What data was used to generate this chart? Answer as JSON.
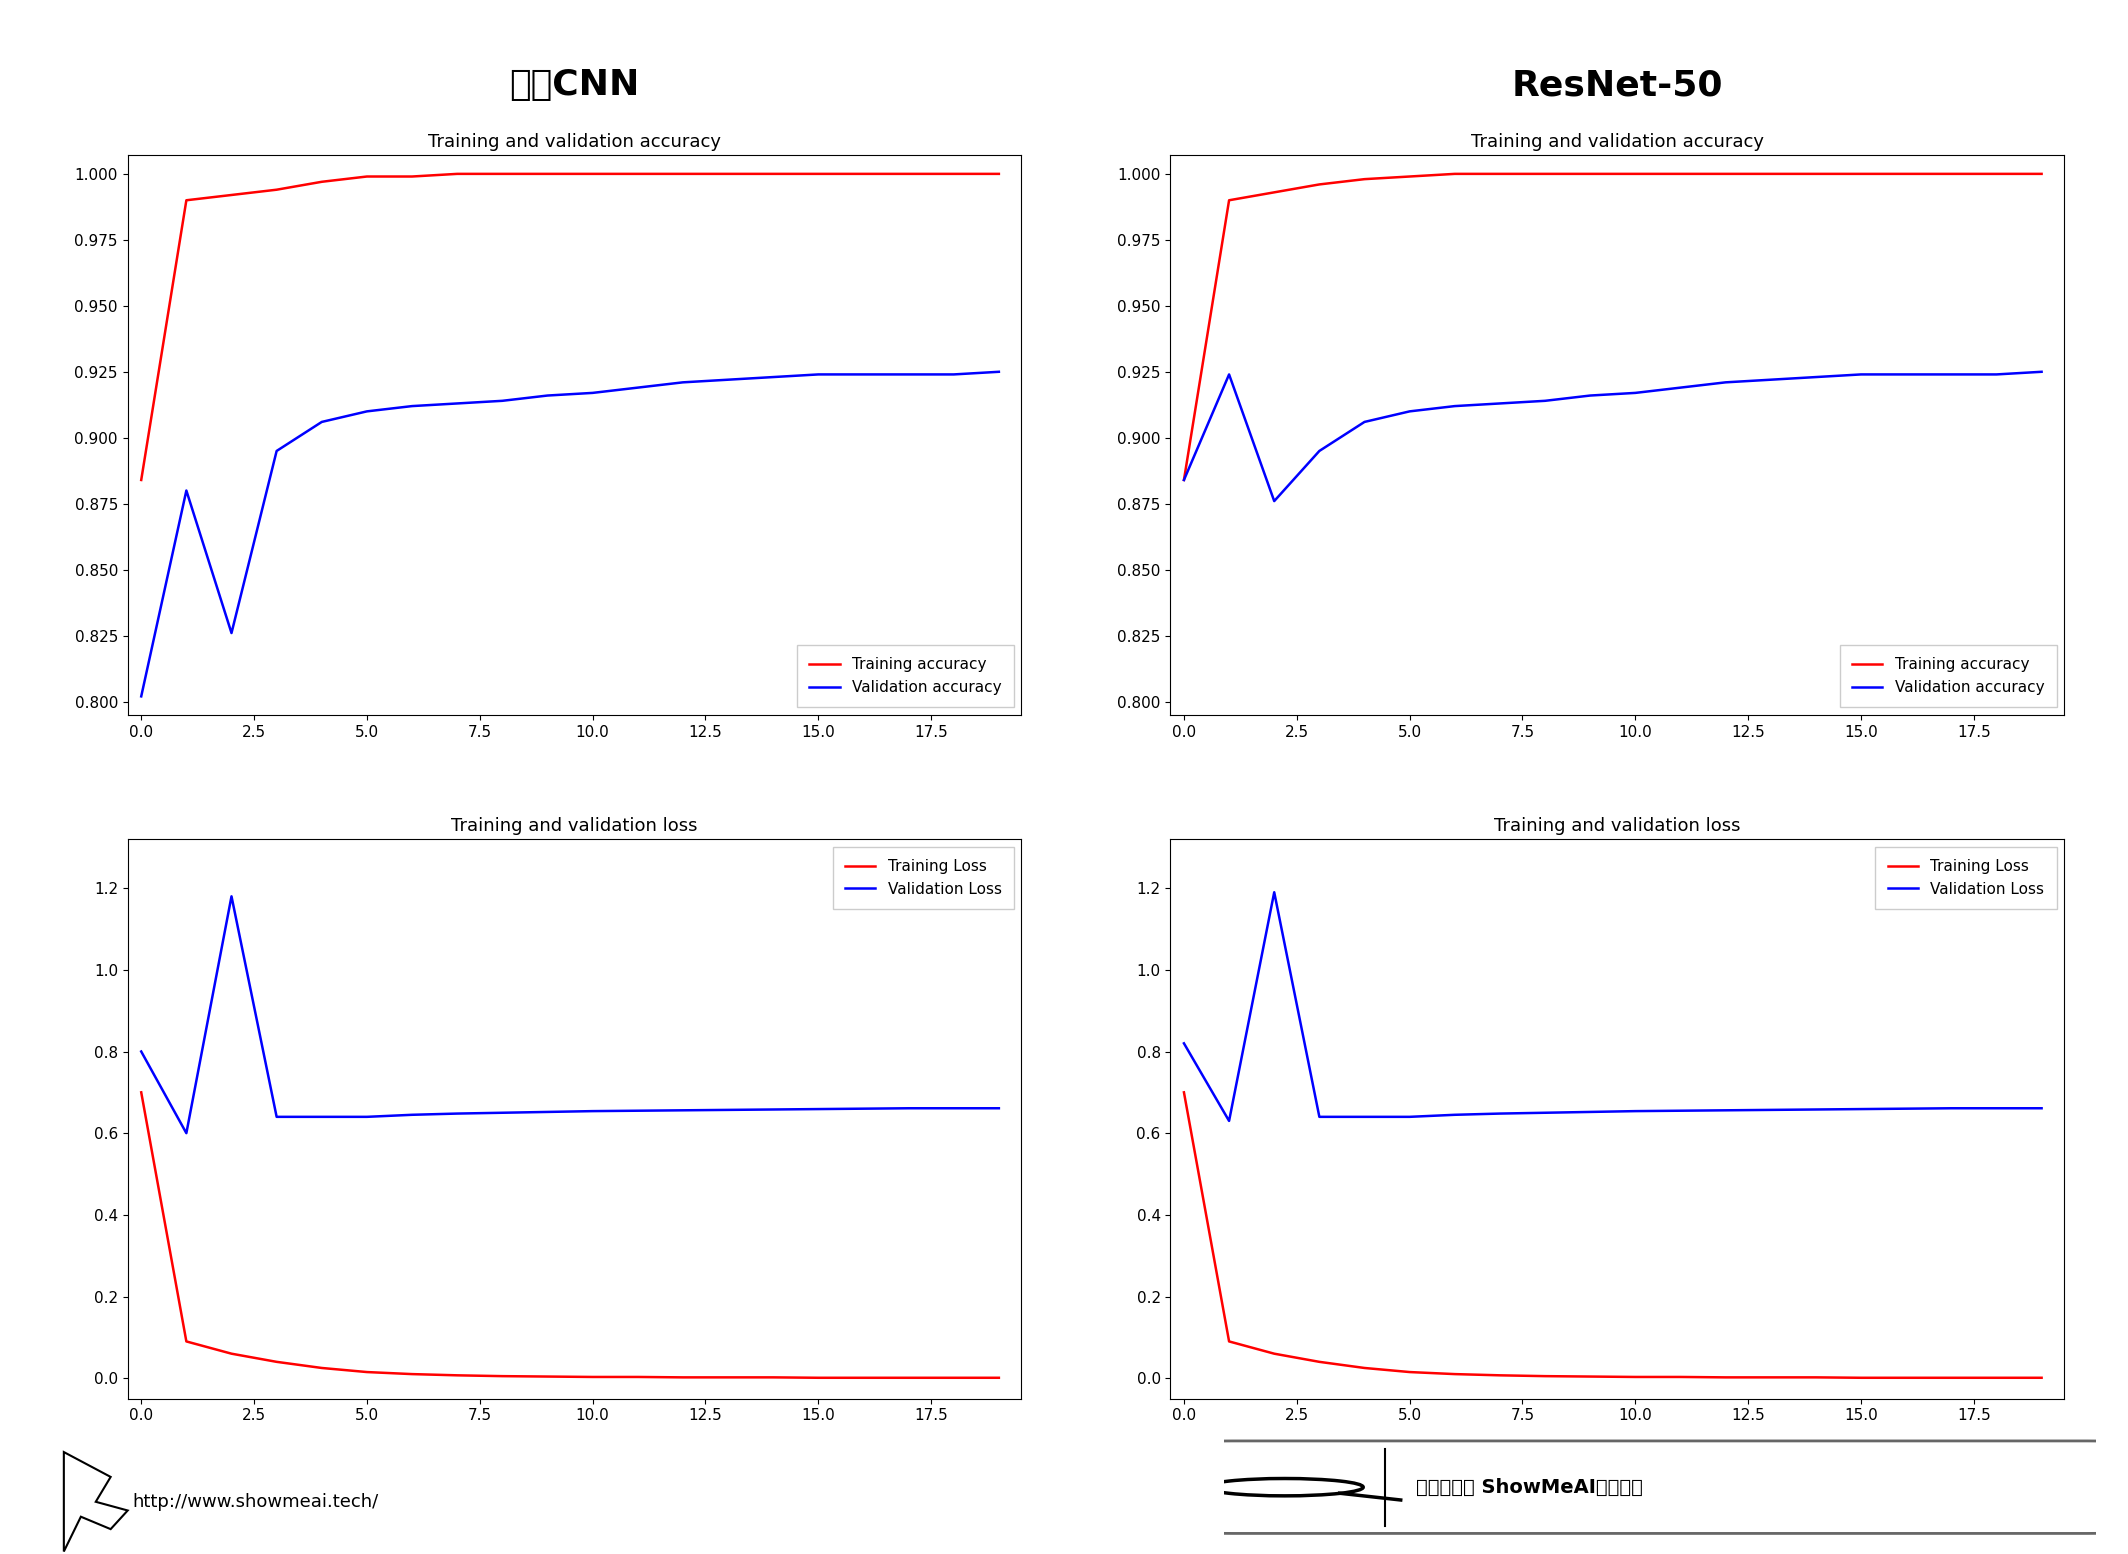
{
  "title_left": "普通CNN",
  "title_right": "ResNet-50",
  "acc_title": "Training and validation accuracy",
  "loss_title": "Training and validation loss",
  "epochs": [
    0,
    1,
    2,
    3,
    4,
    5,
    6,
    7,
    8,
    9,
    10,
    11,
    12,
    13,
    14,
    15,
    16,
    17,
    18,
    19
  ],
  "cnn_train_acc": [
    0.884,
    0.99,
    0.992,
    0.994,
    0.997,
    0.999,
    0.999,
    1.0,
    1.0,
    1.0,
    1.0,
    1.0,
    1.0,
    1.0,
    1.0,
    1.0,
    1.0,
    1.0,
    1.0,
    1.0
  ],
  "cnn_val_acc": [
    0.802,
    0.88,
    0.826,
    0.895,
    0.906,
    0.91,
    0.912,
    0.913,
    0.914,
    0.916,
    0.917,
    0.919,
    0.921,
    0.922,
    0.923,
    0.924,
    0.924,
    0.924,
    0.924,
    0.925
  ],
  "resnet_train_acc": [
    0.884,
    0.99,
    0.993,
    0.996,
    0.998,
    0.999,
    1.0,
    1.0,
    1.0,
    1.0,
    1.0,
    1.0,
    1.0,
    1.0,
    1.0,
    1.0,
    1.0,
    1.0,
    1.0,
    1.0
  ],
  "resnet_val_acc": [
    0.884,
    0.924,
    0.876,
    0.895,
    0.906,
    0.91,
    0.912,
    0.913,
    0.914,
    0.916,
    0.917,
    0.919,
    0.921,
    0.922,
    0.923,
    0.924,
    0.924,
    0.924,
    0.924,
    0.925
  ],
  "cnn_train_loss": [
    0.7,
    0.09,
    0.06,
    0.04,
    0.025,
    0.015,
    0.01,
    0.007,
    0.005,
    0.004,
    0.003,
    0.003,
    0.002,
    0.002,
    0.002,
    0.001,
    0.001,
    0.001,
    0.001,
    0.001
  ],
  "cnn_val_loss": [
    0.8,
    0.6,
    1.18,
    0.64,
    0.64,
    0.64,
    0.645,
    0.648,
    0.65,
    0.652,
    0.654,
    0.655,
    0.656,
    0.657,
    0.658,
    0.659,
    0.66,
    0.661,
    0.661,
    0.661
  ],
  "resnet_train_loss": [
    0.7,
    0.09,
    0.06,
    0.04,
    0.025,
    0.015,
    0.01,
    0.007,
    0.005,
    0.004,
    0.003,
    0.003,
    0.002,
    0.002,
    0.002,
    0.001,
    0.001,
    0.001,
    0.001,
    0.001
  ],
  "resnet_val_loss": [
    0.82,
    0.63,
    1.19,
    0.64,
    0.64,
    0.64,
    0.645,
    0.648,
    0.65,
    0.652,
    0.654,
    0.655,
    0.656,
    0.657,
    0.658,
    0.659,
    0.66,
    0.661,
    0.661,
    0.661
  ],
  "acc_ylim": [
    0.795,
    1.007
  ],
  "loss_ylim": [
    -0.05,
    1.32
  ],
  "acc_yticks": [
    0.8,
    0.825,
    0.85,
    0.875,
    0.9,
    0.925,
    0.95,
    0.975,
    1.0
  ],
  "loss_yticks": [
    0.0,
    0.2,
    0.4,
    0.6,
    0.8,
    1.0,
    1.2
  ],
  "xticks": [
    0.0,
    2.5,
    5.0,
    7.5,
    10.0,
    12.5,
    15.0,
    17.5
  ],
  "train_color": "#ff0000",
  "val_color": "#0000ff",
  "bg_color": "#ffffff",
  "legend_train_acc": "Training accuracy",
  "legend_val_acc": "Validation accuracy",
  "legend_train_loss": "Training Loss",
  "legend_val_loss": "Validation Loss",
  "footer_text": "http://www.showmeai.tech/",
  "watermark_text": "搜索｜微信 ShowMeAI研究中心",
  "title_fontsize": 26,
  "subtitle_fontsize": 13,
  "tick_fontsize": 11,
  "legend_fontsize": 11
}
